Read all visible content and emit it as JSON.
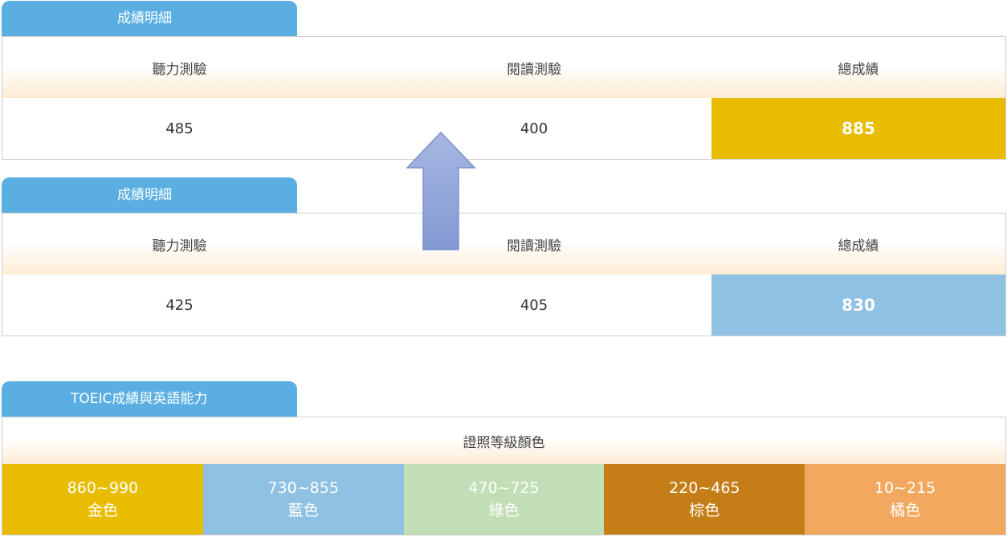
{
  "panel1": {
    "tab_title": "成績明細",
    "headers": [
      "聽力測驗",
      "閱讀測驗",
      "總成績"
    ],
    "values": [
      "485",
      "400",
      "885"
    ],
    "total_color": "#e8bc00"
  },
  "panel2": {
    "tab_title": "成績明細",
    "headers": [
      "聽力測驗",
      "閱讀測驗",
      "總成績"
    ],
    "values": [
      "425",
      "405",
      "830"
    ],
    "total_color": "#8fc1e2"
  },
  "arrow": {
    "icon": "up-arrow-icon",
    "color": "#8ea6da"
  },
  "levels": {
    "tab_title": "TOEIC成績與英語能力",
    "header": "證照等級顏色",
    "items": [
      {
        "range": "860~990",
        "color_name": "金色",
        "color": "#e8bc00"
      },
      {
        "range": "730~855",
        "color_name": "藍色",
        "color": "#8fc1e2"
      },
      {
        "range": "470~725",
        "color_name": "綠色",
        "color": "#c2deb6"
      },
      {
        "range": "220~465",
        "color_name": "棕色",
        "color": "#c57e17"
      },
      {
        "range": "10~215",
        "color_name": "橘色",
        "color": "#f2a85e"
      }
    ]
  }
}
